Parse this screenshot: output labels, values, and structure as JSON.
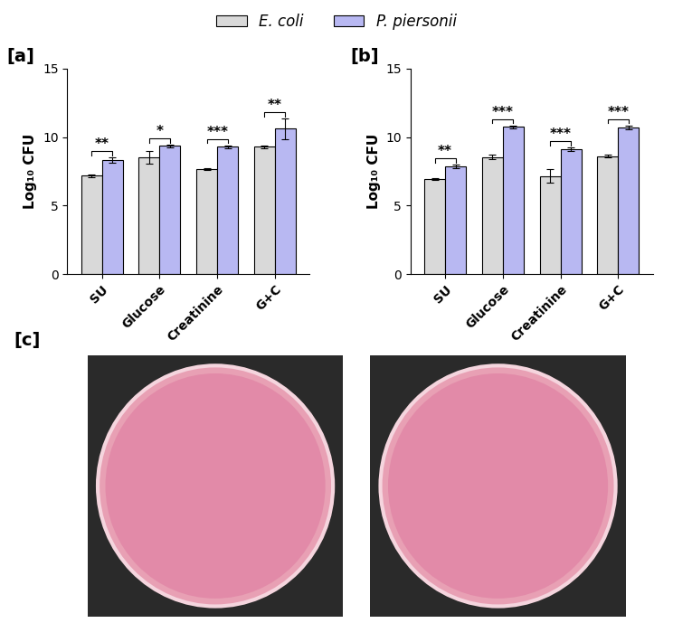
{
  "chart_data": [
    {
      "type": "bar",
      "title": "[a]",
      "y_label": "Log₁₀ CFU",
      "categories": [
        "SU",
        "Glucose",
        "Creatinine",
        "G+C"
      ],
      "series": [
        {
          "name": "E. coli",
          "color": "#d9d9d9",
          "values": [
            7.2,
            8.5,
            7.65,
            9.3
          ],
          "errors": [
            0.1,
            0.45,
            0.05,
            0.1
          ]
        },
        {
          "name": "P. piersonii",
          "color": "#b8b8f2",
          "values": [
            8.3,
            9.35,
            9.3,
            10.6
          ],
          "errors": [
            0.2,
            0.1,
            0.1,
            0.75
          ]
        }
      ],
      "annotations": [
        "**",
        "*",
        "***",
        "**"
      ],
      "ylim": [
        0,
        15
      ],
      "yticks": [
        0,
        5,
        10,
        15
      ],
      "legend": "upper center"
    },
    {
      "type": "bar",
      "title": "[b]",
      "y_label": "Log₁₀ CFU",
      "categories": [
        "SU",
        "Glucose",
        "Creatinine",
        "G+C"
      ],
      "series": [
        {
          "name": "E. coli",
          "color": "#d9d9d9",
          "values": [
            6.95,
            8.55,
            7.15,
            8.6
          ],
          "errors": [
            0.05,
            0.15,
            0.5,
            0.1
          ]
        },
        {
          "name": "P. piersonii",
          "color": "#b8b8f2",
          "values": [
            7.85,
            10.75,
            9.1,
            10.7
          ],
          "errors": [
            0.15,
            0.1,
            0.15,
            0.15
          ]
        }
      ],
      "annotations": [
        "**",
        "***",
        "***",
        "***"
      ],
      "ylim": [
        0,
        15
      ],
      "yticks": [
        0,
        5,
        10,
        15
      ],
      "legend": "upper center"
    }
  ],
  "photo_panel": {
    "label": "[c]"
  }
}
